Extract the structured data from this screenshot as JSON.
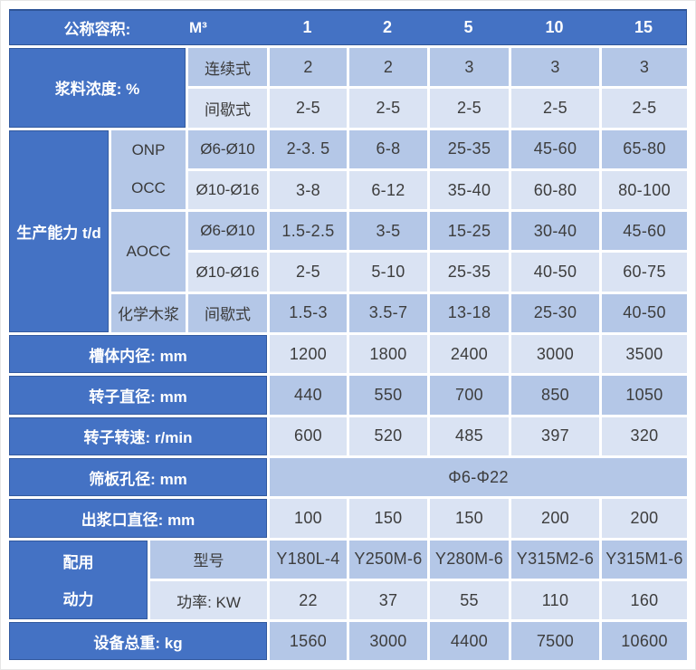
{
  "colors": {
    "header_blue": "#4472C4",
    "band_medium": "#B4C7E7",
    "band_light": "#DAE3F3",
    "border_navy": "#2F5597",
    "text_dark": "#3D3D3D",
    "label_text": "#FFFFFF"
  },
  "table": {
    "header": {
      "label": "公称容积:",
      "unit": "M³",
      "sizes": [
        "1",
        "2",
        "5",
        "10",
        "15"
      ]
    },
    "consistency": {
      "label": "浆料浓度: %",
      "continuous": {
        "label": "连续式",
        "values": [
          "2",
          "2",
          "3",
          "3",
          "3"
        ]
      },
      "batch": {
        "label": "间歇式",
        "values": [
          "2-5",
          "2-5",
          "2-5",
          "2-5",
          "2-5"
        ]
      }
    },
    "capacity": {
      "label": "生产能力 t/d",
      "onp": "ONP",
      "occ": "OCC",
      "aocc": "AOCC",
      "wood": "化学木浆",
      "rows": [
        {
          "sub": "Ø6-Ø10",
          "values": [
            "2-3. 5",
            "6-8",
            "25-35",
            "45-60",
            "65-80"
          ]
        },
        {
          "sub": "Ø10-Ø16",
          "values": [
            "3-8",
            "6-12",
            "35-40",
            "60-80",
            "80-100"
          ]
        },
        {
          "sub": "Ø6-Ø10",
          "values": [
            "1.5-2.5",
            "3-5",
            "15-25",
            "30-40",
            "45-60"
          ]
        },
        {
          "sub": "Ø10-Ø16",
          "values": [
            "2-5",
            "5-10",
            "25-35",
            "40-50",
            "60-75"
          ]
        },
        {
          "sub": "间歇式",
          "values": [
            "1.5-3",
            "3.5-7",
            "13-18",
            "25-30",
            "40-50"
          ]
        }
      ]
    },
    "specs": [
      {
        "label": "槽体内径: mm",
        "values": [
          "1200",
          "1800",
          "2400",
          "3000",
          "3500"
        ]
      },
      {
        "label": "转子直径: mm",
        "values": [
          "440",
          "550",
          "700",
          "850",
          "1050"
        ]
      },
      {
        "label": "转子转速: r/min",
        "values": [
          "600",
          "520",
          "485",
          "397",
          "320"
        ]
      },
      {
        "label": "筛板孔径: mm",
        "merged_value": "Φ6-Φ22"
      },
      {
        "label": "出浆口直径: mm",
        "values": [
          "100",
          "150",
          "150",
          "200",
          "200"
        ]
      }
    ],
    "power": {
      "label_line1": "配用",
      "label_line2": "动力",
      "model": {
        "label": "型号",
        "values": [
          "Y180L-4",
          "Y250M-6",
          "Y280M-6",
          "Y315M2-6",
          "Y315M1-6"
        ]
      },
      "kw": {
        "label": "功率: KW",
        "values": [
          "22",
          "37",
          "55",
          "110",
          "160"
        ]
      }
    },
    "weight": {
      "label": "设备总重: kg",
      "values": [
        "1560",
        "3000",
        "4400",
        "7500",
        "10600"
      ]
    }
  }
}
